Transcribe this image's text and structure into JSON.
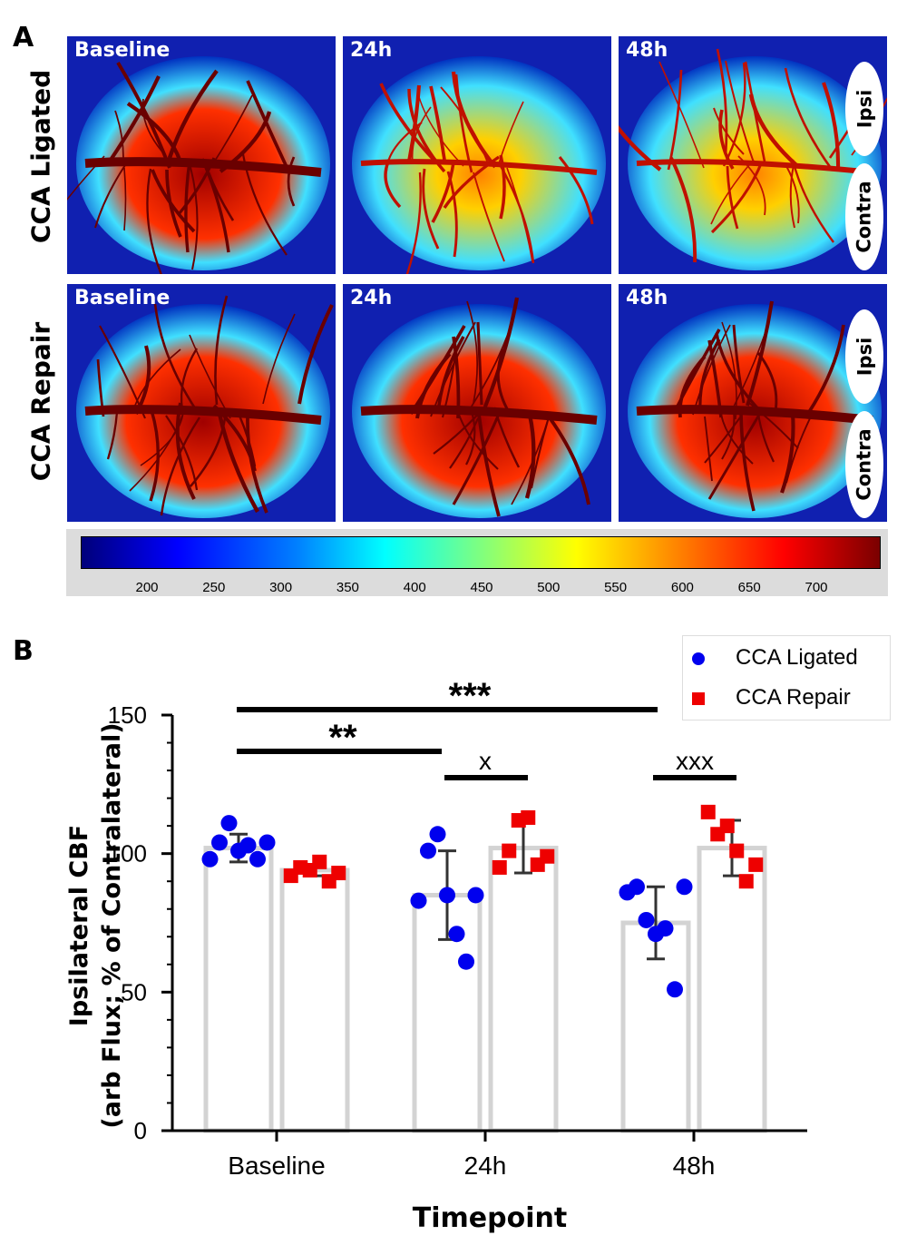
{
  "panel_a": {
    "letter": "A",
    "rows": [
      {
        "label": "CCA Ligated",
        "tiles": [
          "Baseline",
          "24h",
          "48h"
        ],
        "ovals": [
          "Ipsi",
          "Contra"
        ]
      },
      {
        "label": "CCA Repair",
        "tiles": [
          "Baseline",
          "24h",
          "48h"
        ],
        "ovals": [
          "Ipsi",
          "Contra"
        ]
      }
    ],
    "colorbar_ticks": [
      "200",
      "250",
      "300",
      "350",
      "400",
      "450",
      "500",
      "550",
      "600",
      "650",
      "700"
    ]
  },
  "panel_b": {
    "letter": "B"
  },
  "colors": {
    "ligated": "#0000ee",
    "repair": "#ee0000",
    "bar": "#d3d3d3",
    "errorbar": "#333333"
  },
  "chart_data": {
    "type": "bar",
    "xlabel": "Timepoint",
    "ylabel_line1": "Ipsilateral CBF",
    "ylabel_line2": "(arb Flux; % of Contralateral)",
    "categories": [
      "Baseline",
      "24h",
      "48h"
    ],
    "ylim": [
      0,
      150
    ],
    "yticks": [
      0,
      50,
      100,
      150
    ],
    "series": [
      {
        "name": "CCA Ligated",
        "marker": "circle",
        "means": [
          102,
          85,
          75
        ],
        "sd": [
          5,
          16,
          13
        ],
        "points": [
          [
            98,
            104,
            111,
            101,
            103,
            98,
            104
          ],
          [
            83,
            101,
            107,
            85,
            71,
            61,
            85
          ],
          [
            86,
            88,
            76,
            71,
            73,
            51,
            88
          ]
        ]
      },
      {
        "name": "CCA Repair",
        "marker": "square",
        "means": [
          94,
          102,
          102
        ],
        "sd": [
          2,
          9,
          10
        ],
        "points": [
          [
            92,
            95,
            94,
            97,
            90,
            93
          ],
          [
            95,
            101,
            112,
            113,
            96,
            99
          ],
          [
            115,
            107,
            110,
            101,
            90,
            96
          ]
        ]
      }
    ],
    "significance": [
      {
        "label": "***",
        "from": "Baseline",
        "to": "48h"
      },
      {
        "label": "**",
        "from": "Baseline",
        "to": "24h"
      },
      {
        "label": "x",
        "within": "24h"
      },
      {
        "label": "xxx",
        "within": "48h"
      }
    ],
    "legend_position": "top-right"
  }
}
